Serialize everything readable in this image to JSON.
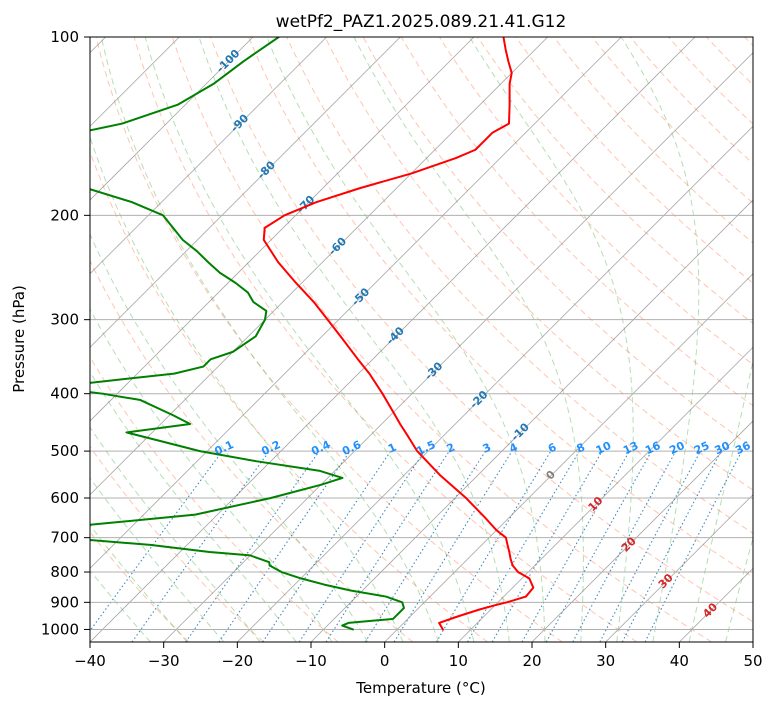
{
  "chart_data": {
    "type": "line",
    "title": "wetPf2_PAZ1.2025.089.21.41.G12",
    "xlabel": "Temperature (°C)",
    "ylabel": "Pressure (hPa)",
    "xlim": [
      -40,
      50
    ],
    "ylim": [
      1050,
      100
    ],
    "y_scale": "log",
    "skew": 45,
    "x_ticks": [
      -40,
      -30,
      -20,
      -10,
      0,
      10,
      20,
      30,
      40,
      50
    ],
    "x_tick_labels": [
      "−40",
      "−30",
      "−20",
      "−10",
      "0",
      "10",
      "20",
      "30",
      "40",
      "50"
    ],
    "y_ticks": [
      1000,
      900,
      800,
      700,
      600,
      500,
      400,
      300,
      200,
      100
    ],
    "y_tick_labels": [
      "1000",
      "900",
      "800",
      "700",
      "600",
      "500",
      "400",
      "300",
      "200",
      "100"
    ],
    "grid": true,
    "colors": {
      "temperature": "#ff0000",
      "dewpoint": "#008000",
      "isotherm": "#808080",
      "dry_adiabat": "#ff7f50",
      "moist_adiabat": "#2ca02c",
      "mixing_ratio": "#1f77b4",
      "isotherm_label": "#1f77b4",
      "mr_label": "#1e90ff",
      "warm_label": "#d62728",
      "zero_label": "#808080"
    },
    "isotherm_labels": [
      {
        "t": -100,
        "p": 110,
        "text": "-100"
      },
      {
        "t": -90,
        "p": 140,
        "text": "-90"
      },
      {
        "t": -80,
        "p": 168,
        "text": "-80"
      },
      {
        "t": -70,
        "p": 192,
        "text": "-70"
      },
      {
        "t": -60,
        "p": 226,
        "text": "-60"
      },
      {
        "t": -50,
        "p": 275,
        "text": "-50"
      },
      {
        "t": -40,
        "p": 320,
        "text": "-40"
      },
      {
        "t": -30,
        "p": 367,
        "text": "-30"
      },
      {
        "t": -20,
        "p": 410,
        "text": "-20"
      },
      {
        "t": -10,
        "p": 465,
        "text": "-10"
      },
      {
        "t": 0,
        "p": 550,
        "text": "0"
      },
      {
        "t": 10,
        "p": 615,
        "text": "10"
      },
      {
        "t": 20,
        "p": 720,
        "text": "20"
      },
      {
        "t": 30,
        "p": 830,
        "text": "30"
      },
      {
        "t": 40,
        "p": 930,
        "text": "40"
      }
    ],
    "mixing_ratio_labels": [
      "0.1",
      "0.2",
      "0.4",
      "0.6",
      "1",
      "1.5",
      "2",
      "3",
      "4",
      "6",
      "8",
      "10",
      "13",
      "16",
      "20",
      "25",
      "30",
      "36"
    ],
    "mixing_ratio_values": [
      0.1,
      0.2,
      0.4,
      0.6,
      1,
      1.5,
      2,
      3,
      4,
      6,
      8,
      10,
      13,
      16,
      20,
      25,
      30,
      36
    ],
    "series": [
      {
        "name": "",
        "pressure": [
          1000,
          975,
          950,
          925,
          910,
          900,
          880,
          850,
          820,
          800,
          780,
          760,
          740,
          720,
          700,
          680,
          650,
          600,
          550,
          500,
          470,
          450,
          430,
          400,
          370,
          350,
          320,
          300,
          280,
          260,
          240,
          220,
          210,
          200,
          190,
          180,
          170,
          160,
          155,
          150,
          145,
          140,
          130,
          120,
          115,
          110,
          105,
          100
        ],
        "temperature": [
          6.2,
          4.8,
          6.5,
          8.5,
          10.0,
          11.2,
          13.0,
          12.8,
          11.0,
          8.6,
          7.0,
          5.8,
          4.7,
          3.5,
          2.3,
          0.0,
          -3.0,
          -8.5,
          -15.0,
          -21.5,
          -25.0,
          -27.5,
          -30.0,
          -34.0,
          -38.5,
          -42.0,
          -47.5,
          -51.5,
          -55.8,
          -60.8,
          -66.0,
          -71.0,
          -72.5,
          -71.5,
          -69.0,
          -65.0,
          -60.0,
          -56.0,
          -54.5,
          -54.5,
          -54.5,
          -53.5,
          -56.0,
          -58.8,
          -60.0,
          -62.0,
          -64.0,
          -66.0
        ]
      },
      {
        "name": "",
        "pressure": [
          1000,
          985,
          975,
          960,
          940,
          920,
          900,
          880,
          860,
          840,
          820,
          800,
          780,
          770,
          750,
          740,
          720,
          700,
          690,
          680,
          670,
          640,
          600,
          570,
          555,
          540,
          520,
          500,
          480,
          465,
          450,
          435,
          410,
          400,
          390,
          370,
          360,
          350,
          340,
          320,
          300,
          290,
          280,
          270,
          260,
          250,
          240,
          230,
          220,
          200,
          190,
          180,
          170,
          160,
          150,
          140,
          130,
          120,
          110,
          100
        ],
        "dewpoint": [
          -6.0,
          -8.0,
          -7.5,
          -2.0,
          -2.0,
          -2.0,
          -3.0,
          -6.0,
          -11.5,
          -16.0,
          -20.0,
          -23.5,
          -26.0,
          -26.5,
          -30.0,
          -36.0,
          -45.0,
          -58.0,
          -61.0,
          -72.0,
          -58.0,
          -43.0,
          -35.0,
          -30.0,
          -28.0,
          -32.0,
          -42.0,
          -51.0,
          -58.0,
          -63.5,
          -56.0,
          -59.5,
          -66.0,
          -72.0,
          -80.0,
          -65.0,
          -62.0,
          -62.0,
          -60.0,
          -59.0,
          -60.0,
          -61.0,
          -64.0,
          -66.0,
          -69.0,
          -72.5,
          -75.5,
          -78.5,
          -82.0,
          -88.0,
          -94.0,
          -102.0,
          -111.0,
          -117.0,
          -115.0,
          -106.0,
          -101.0,
          -99.0,
          -98.0,
          -96.5
        ]
      }
    ]
  }
}
